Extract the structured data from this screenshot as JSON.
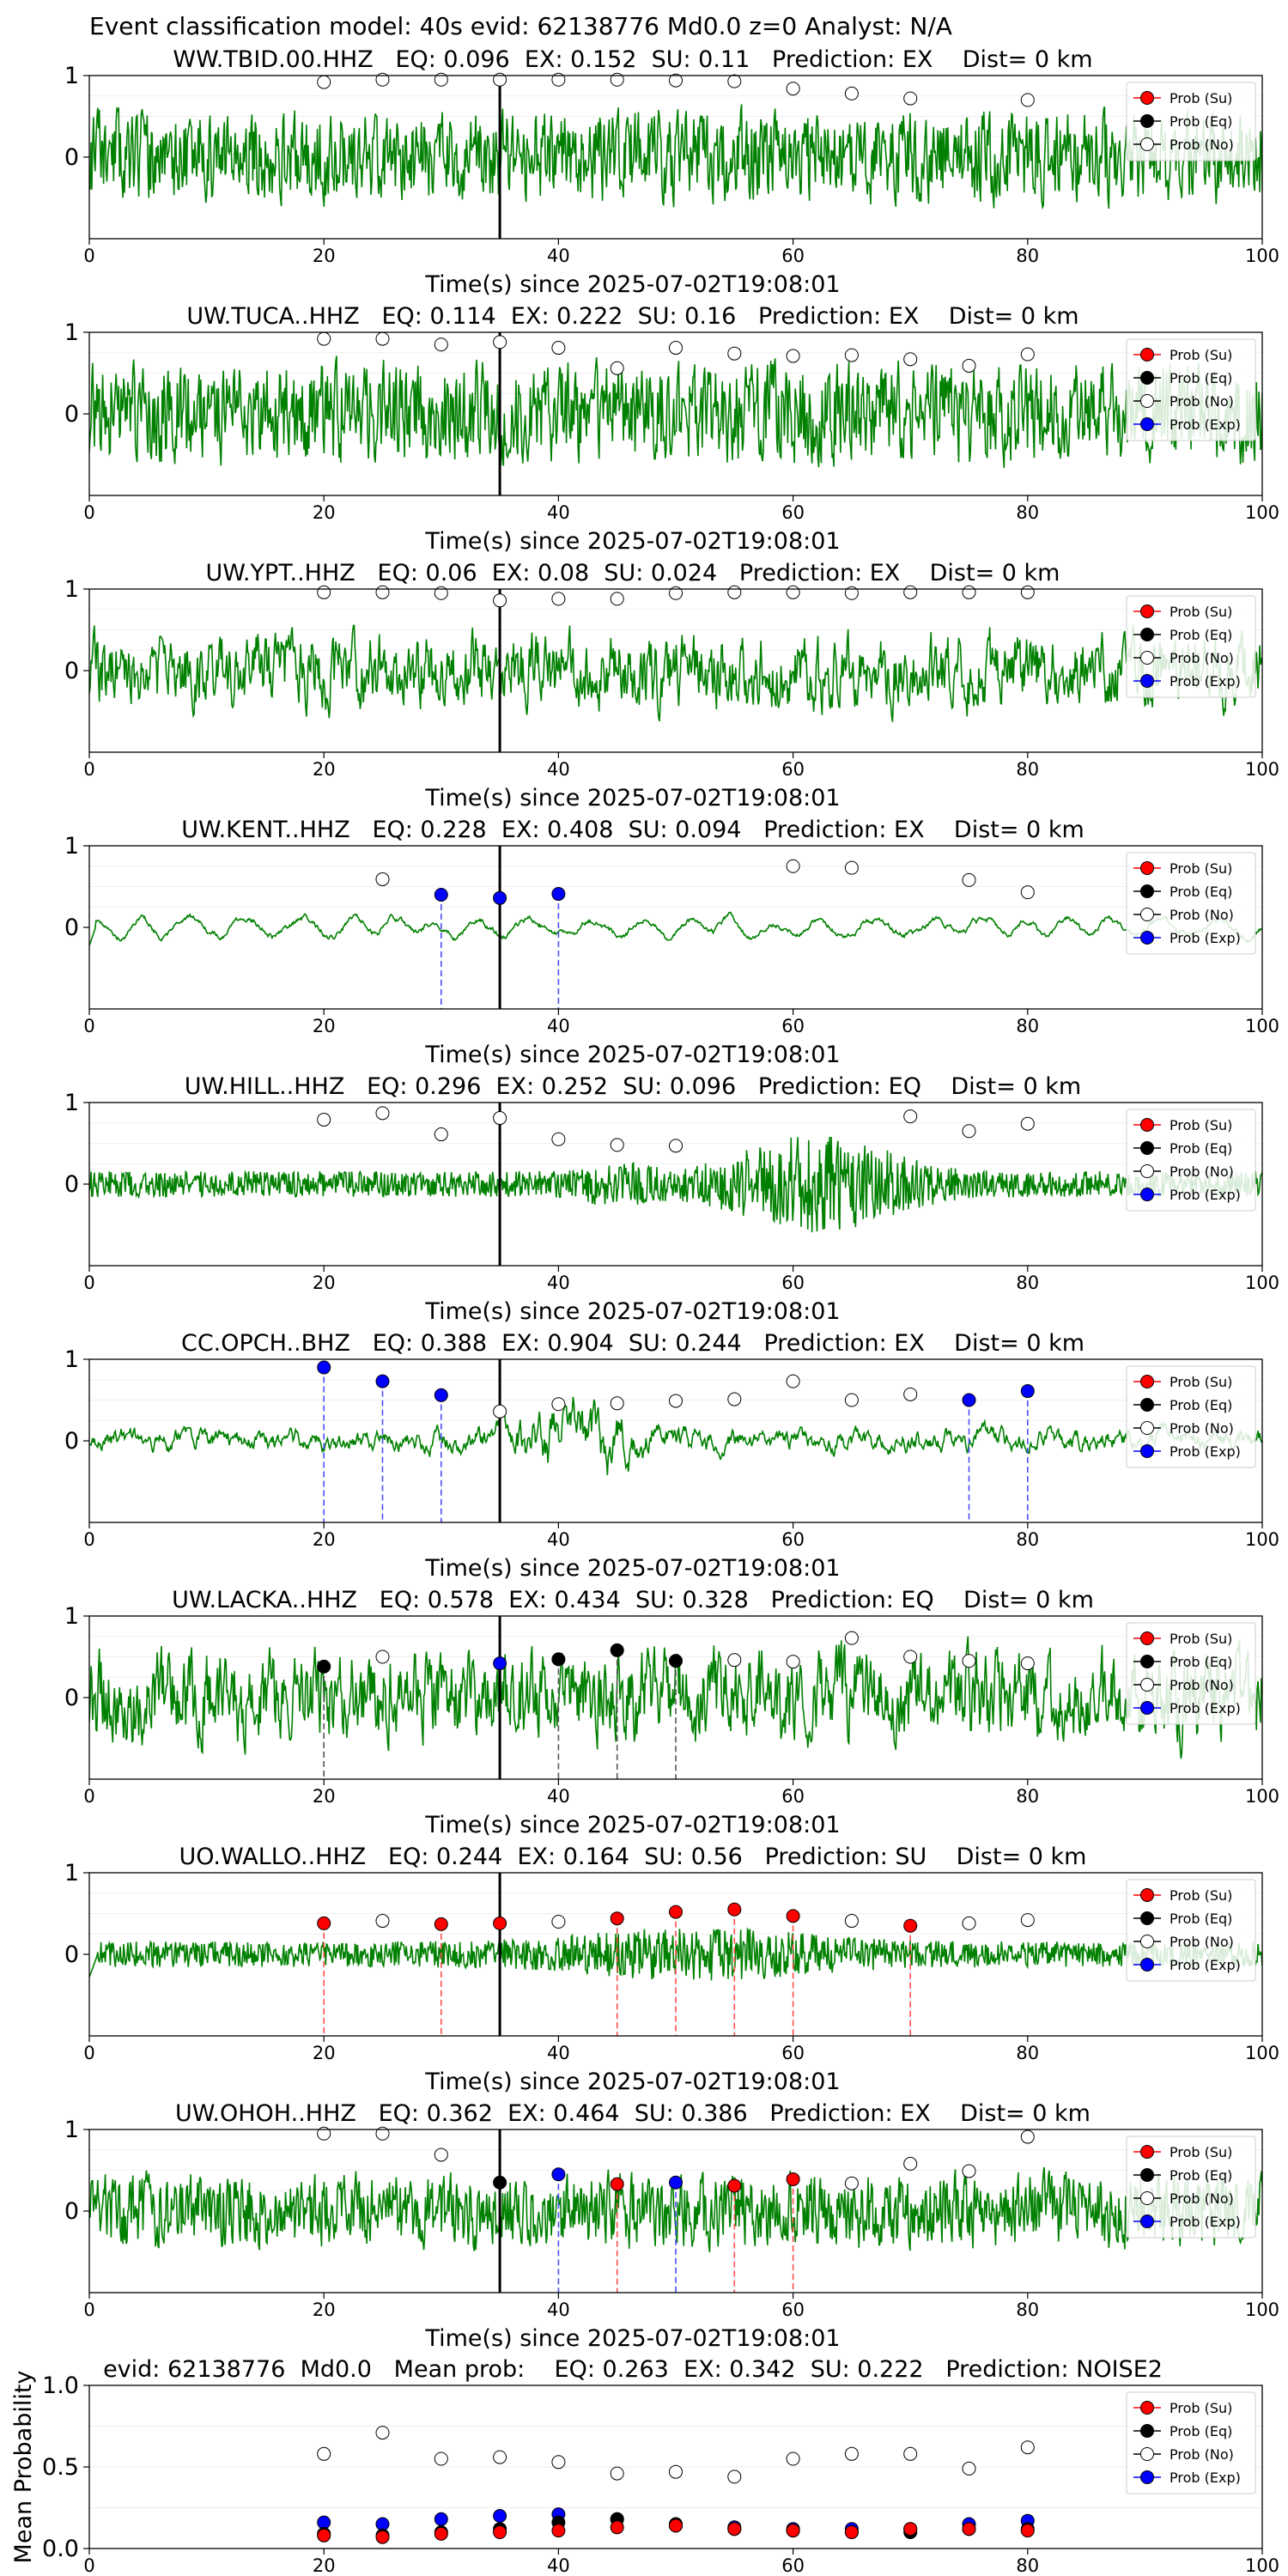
{
  "figure_title": "Event classification model: 40s evid: 62138776 Md0.0 z=0 Analyst: N/A",
  "colors": {
    "trace": "#008000",
    "su": "#ff0000",
    "eq": "#000000",
    "no": "#ffffff",
    "exp": "#0000ff",
    "su_line": "#ff4d4d",
    "exp_line": "#4d4dff",
    "eq_line": "#555555"
  },
  "chart_data": [
    {
      "type": "line",
      "title": "WW.TBID.00.HHZ   EQ: 0.096  EX: 0.152  SU: 0.11   Prediction: EX    Dist= 0 km",
      "xlabel": "Time(s) since 2025-07-02T19:08:01",
      "xlim": [
        0,
        100
      ],
      "ylim": [
        -1,
        1
      ],
      "xticks": [
        "0",
        "20",
        "40",
        "60",
        "80",
        "100"
      ],
      "yticks": [
        "1",
        "0"
      ],
      "pick_time": 35,
      "legend": [
        "Prob (Su)",
        "Prob (Eq)",
        "Prob (No)"
      ],
      "waveform": {
        "style": "noise",
        "amp": 0.55,
        "seed": 11
      },
      "points": [
        {
          "x": 20,
          "y": 0.92,
          "cls": "no"
        },
        {
          "x": 25,
          "y": 0.95,
          "cls": "no"
        },
        {
          "x": 30,
          "y": 0.95,
          "cls": "no"
        },
        {
          "x": 35,
          "y": 0.95,
          "cls": "no"
        },
        {
          "x": 40,
          "y": 0.95,
          "cls": "no"
        },
        {
          "x": 45,
          "y": 0.95,
          "cls": "no"
        },
        {
          "x": 50,
          "y": 0.94,
          "cls": "no"
        },
        {
          "x": 55,
          "y": 0.93,
          "cls": "no"
        },
        {
          "x": 60,
          "y": 0.84,
          "cls": "no"
        },
        {
          "x": 65,
          "y": 0.78,
          "cls": "no"
        },
        {
          "x": 70,
          "y": 0.72,
          "cls": "no"
        },
        {
          "x": 80,
          "y": 0.7,
          "cls": "no"
        }
      ]
    },
    {
      "type": "line",
      "title": "UW.TUCA..HHZ   EQ: 0.114  EX: 0.222  SU: 0.16   Prediction: EX    Dist= 0 km",
      "xlabel": "Time(s) since 2025-07-02T19:08:01",
      "xlim": [
        0,
        100
      ],
      "ylim": [
        -1,
        1
      ],
      "xticks": [
        "0",
        "20",
        "40",
        "60",
        "80",
        "100"
      ],
      "yticks": [
        "1",
        "0"
      ],
      "pick_time": 35,
      "legend": [
        "Prob (Su)",
        "Prob (Eq)",
        "Prob (No)",
        "Prob (Exp)"
      ],
      "waveform": {
        "style": "noise",
        "amp": 0.6,
        "seed": 23
      },
      "points": [
        {
          "x": 20,
          "y": 0.92,
          "cls": "no"
        },
        {
          "x": 25,
          "y": 0.92,
          "cls": "no"
        },
        {
          "x": 30,
          "y": 0.85,
          "cls": "no"
        },
        {
          "x": 35,
          "y": 0.88,
          "cls": "no"
        },
        {
          "x": 40,
          "y": 0.81,
          "cls": "no"
        },
        {
          "x": 45,
          "y": 0.56,
          "cls": "no"
        },
        {
          "x": 50,
          "y": 0.81,
          "cls": "no"
        },
        {
          "x": 55,
          "y": 0.74,
          "cls": "no"
        },
        {
          "x": 60,
          "y": 0.71,
          "cls": "no"
        },
        {
          "x": 65,
          "y": 0.72,
          "cls": "no"
        },
        {
          "x": 70,
          "y": 0.67,
          "cls": "no"
        },
        {
          "x": 75,
          "y": 0.59,
          "cls": "no"
        },
        {
          "x": 80,
          "y": 0.73,
          "cls": "no"
        }
      ]
    },
    {
      "type": "line",
      "title": "UW.YPT..HHZ   EQ: 0.06  EX: 0.08  SU: 0.024   Prediction: EX    Dist= 0 km",
      "xlabel": "Time(s) since 2025-07-02T19:08:01",
      "xlim": [
        0,
        100
      ],
      "ylim": [
        -1,
        1
      ],
      "xticks": [
        "0",
        "20",
        "40",
        "60",
        "80",
        "100"
      ],
      "yticks": [
        "1",
        "0"
      ],
      "pick_time": 35,
      "legend": [
        "Prob (Su)",
        "Prob (Eq)",
        "Prob (No)",
        "Prob (Exp)"
      ],
      "waveform": {
        "style": "smoothnoise",
        "amp": 0.6,
        "seed": 37
      },
      "points": [
        {
          "x": 20,
          "y": 0.96,
          "cls": "no"
        },
        {
          "x": 25,
          "y": 0.96,
          "cls": "no"
        },
        {
          "x": 30,
          "y": 0.95,
          "cls": "no"
        },
        {
          "x": 35,
          "y": 0.86,
          "cls": "no"
        },
        {
          "x": 40,
          "y": 0.88,
          "cls": "no"
        },
        {
          "x": 45,
          "y": 0.88,
          "cls": "no"
        },
        {
          "x": 50,
          "y": 0.95,
          "cls": "no"
        },
        {
          "x": 55,
          "y": 0.96,
          "cls": "no"
        },
        {
          "x": 60,
          "y": 0.96,
          "cls": "no"
        },
        {
          "x": 65,
          "y": 0.95,
          "cls": "no"
        },
        {
          "x": 70,
          "y": 0.96,
          "cls": "no"
        },
        {
          "x": 75,
          "y": 0.96,
          "cls": "no"
        },
        {
          "x": 80,
          "y": 0.96,
          "cls": "no"
        }
      ]
    },
    {
      "type": "line",
      "title": "UW.KENT..HHZ   EQ: 0.228  EX: 0.408  SU: 0.094   Prediction: EX    Dist= 0 km",
      "xlabel": "Time(s) since 2025-07-02T19:08:01",
      "xlim": [
        0,
        100
      ],
      "ylim": [
        -1,
        1
      ],
      "xticks": [
        "0",
        "20",
        "40",
        "60",
        "80",
        "100"
      ],
      "yticks": [
        "1",
        "0"
      ],
      "pick_time": 35,
      "legend": [
        "Prob (Su)",
        "Prob (Eq)",
        "Prob (No)",
        "Prob (Exp)"
      ],
      "waveform": {
        "style": "swell",
        "amp": 0.3,
        "seed": 41
      },
      "points": [
        {
          "x": 25,
          "y": 0.59,
          "cls": "no"
        },
        {
          "x": 30,
          "y": 0.4,
          "cls": "exp"
        },
        {
          "x": 35,
          "y": 0.36,
          "cls": "exp"
        },
        {
          "x": 40,
          "y": 0.41,
          "cls": "exp"
        },
        {
          "x": 60,
          "y": 0.75,
          "cls": "no"
        },
        {
          "x": 65,
          "y": 0.73,
          "cls": "no"
        },
        {
          "x": 75,
          "y": 0.58,
          "cls": "no"
        },
        {
          "x": 80,
          "y": 0.43,
          "cls": "no"
        }
      ]
    },
    {
      "type": "line",
      "title": "UW.HILL..HHZ   EQ: 0.296  EX: 0.252  SU: 0.096   Prediction: EQ    Dist= 0 km",
      "xlabel": "Time(s) since 2025-07-02T19:08:01",
      "xlim": [
        0,
        100
      ],
      "ylim": [
        -1,
        1
      ],
      "xticks": [
        "0",
        "20",
        "40",
        "60",
        "80",
        "100"
      ],
      "yticks": [
        "1",
        "0"
      ],
      "pick_time": 35,
      "legend": [
        "Prob (Su)",
        "Prob (Eq)",
        "Prob (No)",
        "Prob (Exp)"
      ],
      "waveform": {
        "style": "burst",
        "amp": 0.35,
        "seed": 53
      },
      "points": [
        {
          "x": 20,
          "y": 0.79,
          "cls": "no"
        },
        {
          "x": 25,
          "y": 0.87,
          "cls": "no"
        },
        {
          "x": 30,
          "y": 0.61,
          "cls": "no"
        },
        {
          "x": 35,
          "y": 0.81,
          "cls": "no"
        },
        {
          "x": 40,
          "y": 0.55,
          "cls": "no"
        },
        {
          "x": 45,
          "y": 0.48,
          "cls": "no"
        },
        {
          "x": 50,
          "y": 0.47,
          "cls": "no"
        },
        {
          "x": 70,
          "y": 0.83,
          "cls": "no"
        },
        {
          "x": 75,
          "y": 0.65,
          "cls": "no"
        },
        {
          "x": 80,
          "y": 0.74,
          "cls": "no"
        }
      ]
    },
    {
      "type": "line",
      "title": "CC.OPCH..BHZ   EQ: 0.388  EX: 0.904  SU: 0.244   Prediction: EX    Dist= 0 km",
      "xlabel": "Time(s) since 2025-07-02T19:08:01",
      "xlim": [
        0,
        100
      ],
      "ylim": [
        -1,
        1
      ],
      "xticks": [
        "0",
        "20",
        "40",
        "60",
        "80",
        "100"
      ],
      "yticks": [
        "1",
        "0"
      ],
      "pick_time": 35,
      "legend": [
        "Prob (Su)",
        "Prob (Eq)",
        "Prob (No)",
        "Prob (Exp)"
      ],
      "waveform": {
        "style": "event",
        "amp": 0.3,
        "seed": 67
      },
      "points": [
        {
          "x": 20,
          "y": 0.9,
          "cls": "exp"
        },
        {
          "x": 25,
          "y": 0.73,
          "cls": "exp"
        },
        {
          "x": 30,
          "y": 0.56,
          "cls": "exp"
        },
        {
          "x": 35,
          "y": 0.36,
          "cls": "no"
        },
        {
          "x": 40,
          "y": 0.45,
          "cls": "no"
        },
        {
          "x": 45,
          "y": 0.46,
          "cls": "no"
        },
        {
          "x": 50,
          "y": 0.49,
          "cls": "no"
        },
        {
          "x": 55,
          "y": 0.51,
          "cls": "no"
        },
        {
          "x": 60,
          "y": 0.73,
          "cls": "no"
        },
        {
          "x": 65,
          "y": 0.5,
          "cls": "no"
        },
        {
          "x": 70,
          "y": 0.57,
          "cls": "no"
        },
        {
          "x": 75,
          "y": 0.5,
          "cls": "exp"
        },
        {
          "x": 80,
          "y": 0.61,
          "cls": "exp"
        }
      ]
    },
    {
      "type": "line",
      "title": "UW.LACKA..HHZ   EQ: 0.578  EX: 0.434  SU: 0.328   Prediction: EQ    Dist= 0 km",
      "xlabel": "Time(s) since 2025-07-02T19:08:01",
      "xlim": [
        0,
        100
      ],
      "ylim": [
        -1,
        1
      ],
      "xticks": [
        "0",
        "20",
        "40",
        "60",
        "80",
        "100"
      ],
      "yticks": [
        "1",
        "0"
      ],
      "pick_time": 35,
      "legend": [
        "Prob (Su)",
        "Prob (Eq)",
        "Prob (No)",
        "Prob (Exp)"
      ],
      "waveform": {
        "style": "smoothnoise",
        "amp": 0.75,
        "seed": 79
      },
      "points": [
        {
          "x": 20,
          "y": 0.38,
          "cls": "eq"
        },
        {
          "x": 25,
          "y": 0.5,
          "cls": "no"
        },
        {
          "x": 35,
          "y": 0.42,
          "cls": "exp"
        },
        {
          "x": 40,
          "y": 0.47,
          "cls": "eq"
        },
        {
          "x": 45,
          "y": 0.58,
          "cls": "eq"
        },
        {
          "x": 50,
          "y": 0.45,
          "cls": "eq"
        },
        {
          "x": 55,
          "y": 0.46,
          "cls": "no"
        },
        {
          "x": 60,
          "y": 0.44,
          "cls": "no"
        },
        {
          "x": 65,
          "y": 0.73,
          "cls": "no"
        },
        {
          "x": 70,
          "y": 0.5,
          "cls": "no"
        },
        {
          "x": 75,
          "y": 0.45,
          "cls": "no"
        },
        {
          "x": 80,
          "y": 0.42,
          "cls": "no"
        }
      ]
    },
    {
      "type": "line",
      "title": "UO.WALLO..HHZ   EQ: 0.244  EX: 0.164  SU: 0.56   Prediction: SU    Dist= 0 km",
      "xlabel": "Time(s) since 2025-07-02T19:08:01",
      "xlim": [
        0,
        100
      ],
      "ylim": [
        -1,
        1
      ],
      "xticks": [
        "0",
        "20",
        "40",
        "60",
        "80",
        "100"
      ],
      "yticks": [
        "1",
        "0"
      ],
      "pick_time": 35,
      "legend": [
        "Prob (Su)",
        "Prob (Eq)",
        "Prob (No)",
        "Prob (Exp)"
      ],
      "waveform": {
        "style": "quiet",
        "amp": 0.28,
        "seed": 83
      },
      "points": [
        {
          "x": 20,
          "y": 0.38,
          "cls": "su"
        },
        {
          "x": 25,
          "y": 0.41,
          "cls": "no"
        },
        {
          "x": 30,
          "y": 0.37,
          "cls": "su"
        },
        {
          "x": 35,
          "y": 0.38,
          "cls": "su"
        },
        {
          "x": 40,
          "y": 0.4,
          "cls": "no"
        },
        {
          "x": 45,
          "y": 0.44,
          "cls": "su"
        },
        {
          "x": 50,
          "y": 0.52,
          "cls": "su"
        },
        {
          "x": 55,
          "y": 0.55,
          "cls": "su"
        },
        {
          "x": 60,
          "y": 0.47,
          "cls": "su"
        },
        {
          "x": 65,
          "y": 0.41,
          "cls": "no"
        },
        {
          "x": 70,
          "y": 0.35,
          "cls": "su"
        },
        {
          "x": 75,
          "y": 0.38,
          "cls": "no"
        },
        {
          "x": 80,
          "y": 0.42,
          "cls": "no"
        }
      ]
    },
    {
      "type": "line",
      "title": "UW.OHOH..HHZ   EQ: 0.362  EX: 0.464  SU: 0.386   Prediction: EX    Dist= 0 km",
      "xlabel": "Time(s) since 2025-07-02T19:08:01",
      "xlim": [
        0,
        100
      ],
      "ylim": [
        -1,
        1
      ],
      "xticks": [
        "0",
        "20",
        "40",
        "60",
        "80",
        "100"
      ],
      "yticks": [
        "1",
        "0"
      ],
      "pick_time": 35,
      "legend": [
        "Prob (Su)",
        "Prob (Eq)",
        "Prob (No)",
        "Prob (Exp)"
      ],
      "waveform": {
        "style": "noise",
        "amp": 0.45,
        "seed": 97
      },
      "points": [
        {
          "x": 20,
          "y": 0.95,
          "cls": "no"
        },
        {
          "x": 25,
          "y": 0.95,
          "cls": "no"
        },
        {
          "x": 30,
          "y": 0.69,
          "cls": "no"
        },
        {
          "x": 35,
          "y": 0.35,
          "cls": "eq"
        },
        {
          "x": 40,
          "y": 0.45,
          "cls": "exp"
        },
        {
          "x": 45,
          "y": 0.33,
          "cls": "su"
        },
        {
          "x": 50,
          "y": 0.35,
          "cls": "exp"
        },
        {
          "x": 55,
          "y": 0.31,
          "cls": "su"
        },
        {
          "x": 60,
          "y": 0.39,
          "cls": "su"
        },
        {
          "x": 65,
          "y": 0.34,
          "cls": "no"
        },
        {
          "x": 70,
          "y": 0.58,
          "cls": "no"
        },
        {
          "x": 75,
          "y": 0.49,
          "cls": "no"
        },
        {
          "x": 80,
          "y": 0.91,
          "cls": "no"
        }
      ]
    },
    {
      "type": "scatter",
      "title": "evid: 62138776  Md0.0   Mean prob:    EQ: 0.263  EX: 0.342  SU: 0.222   Prediction: NOISE2",
      "ylabel": "Mean Probability",
      "xlim": [
        0,
        100
      ],
      "ylim": [
        0,
        1
      ],
      "xticks": [
        "0",
        "20",
        "40",
        "60",
        "80",
        "100"
      ],
      "yticks": [
        "0.0",
        "0.5",
        "1.0"
      ],
      "legend": [
        "Prob (Su)",
        "Prob (Eq)",
        "Prob (No)",
        "Prob (Exp)"
      ],
      "series": [
        {
          "name": "Prob (No)",
          "cls": "no",
          "x": [
            20,
            25,
            30,
            35,
            40,
            45,
            50,
            55,
            60,
            65,
            70,
            75,
            80
          ],
          "values": [
            0.58,
            0.71,
            0.55,
            0.56,
            0.53,
            0.46,
            0.47,
            0.44,
            0.55,
            0.58,
            0.58,
            0.49,
            0.62
          ]
        },
        {
          "name": "Prob (Exp)",
          "cls": "exp",
          "x": [
            20,
            25,
            30,
            35,
            40,
            45,
            50,
            55,
            60,
            65,
            70,
            75,
            80
          ],
          "values": [
            0.16,
            0.15,
            0.18,
            0.2,
            0.21,
            0.18,
            0.14,
            0.13,
            0.12,
            0.12,
            0.12,
            0.15,
            0.17
          ]
        },
        {
          "name": "Prob (Eq)",
          "cls": "eq",
          "x": [
            20,
            25,
            30,
            35,
            40,
            45,
            50,
            55,
            60,
            65,
            70,
            75,
            80
          ],
          "values": [
            0.09,
            0.08,
            0.1,
            0.12,
            0.16,
            0.18,
            0.15,
            0.12,
            0.11,
            0.1,
            0.1,
            0.12,
            0.12
          ]
        },
        {
          "name": "Prob (Su)",
          "cls": "su",
          "x": [
            20,
            25,
            30,
            35,
            40,
            45,
            50,
            55,
            60,
            65,
            70,
            75,
            80
          ],
          "values": [
            0.08,
            0.07,
            0.09,
            0.1,
            0.11,
            0.13,
            0.14,
            0.12,
            0.11,
            0.1,
            0.12,
            0.12,
            0.11
          ]
        }
      ]
    }
  ]
}
